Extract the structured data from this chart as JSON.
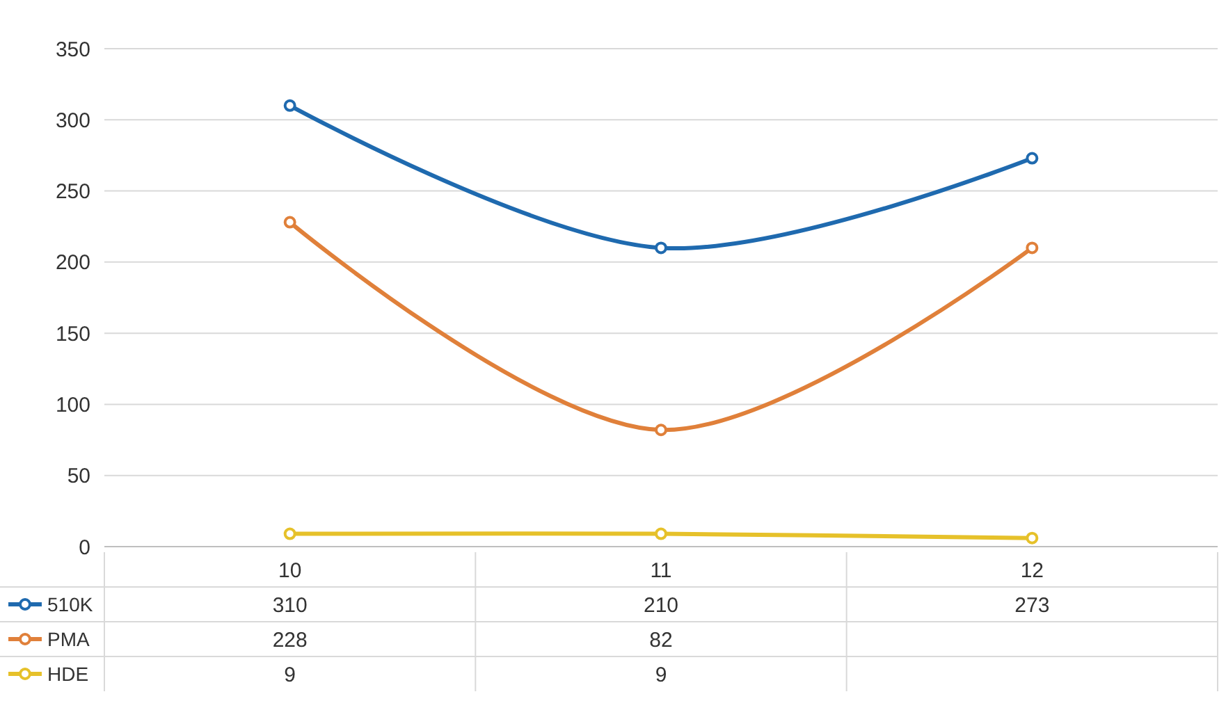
{
  "chart_data": {
    "type": "line",
    "categories": [
      "10",
      "11",
      "12"
    ],
    "series": [
      {
        "name": "510K",
        "color": "#1f6aaf",
        "values": [
          310,
          210,
          273
        ],
        "value_labels": [
          "310",
          "210",
          "273"
        ]
      },
      {
        "name": "PMA",
        "color": "#e0803a",
        "values": [
          228,
          82,
          210
        ],
        "value_labels": [
          "228",
          "82",
          null
        ]
      },
      {
        "name": "HDE",
        "color": "#e6c12a",
        "values": [
          9,
          9,
          6
        ],
        "value_labels": [
          "9",
          "9",
          null
        ]
      }
    ],
    "ylim": [
      0,
      350
    ],
    "yticks": [
      0,
      50,
      100,
      150,
      200,
      250,
      300,
      350
    ],
    "grid": "y",
    "legend": "bottom",
    "marker": "circle",
    "line_style": "solid"
  }
}
